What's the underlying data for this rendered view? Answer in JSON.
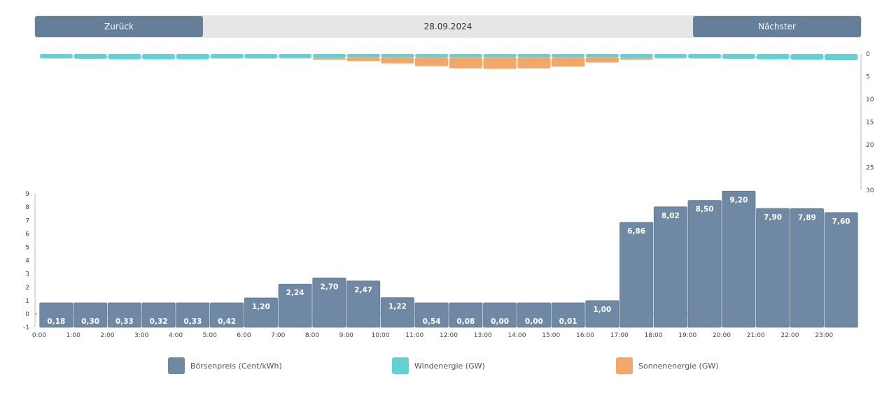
{
  "nav": {
    "prev_label": "Zurück",
    "date": "28.09.2024",
    "next_label": "Nächster"
  },
  "colors": {
    "price": "#6f88a3",
    "price_border": "#5f7793",
    "wind": "#62d0d4",
    "solar": "#f3a86b",
    "button": "#657f9b"
  },
  "legend": [
    {
      "label": "Börsenpreis (Cent/kWh)",
      "color": "#6f88a3"
    },
    {
      "label": "Windenergie (GW)",
      "color": "#62d0d4"
    },
    {
      "label": "Sonnenenergie (GW)",
      "color": "#f3a86b"
    }
  ],
  "chart_data": [
    {
      "type": "bar",
      "categories": [
        "0:00",
        "1:00",
        "2:00",
        "3:00",
        "4:00",
        "5:00",
        "6:00",
        "7:00",
        "8:00",
        "9:00",
        "10:00",
        "11:00",
        "12:00",
        "13:00",
        "14:00",
        "15:00",
        "16:00",
        "17:00",
        "18:00",
        "19:00",
        "20:00",
        "21:00",
        "22:00",
        "23:00"
      ],
      "series": [
        {
          "name": "Börsenpreis (Cent/kWh)",
          "values": [
            0.18,
            0.3,
            0.33,
            0.32,
            0.33,
            0.42,
            1.2,
            2.24,
            2.7,
            2.47,
            1.22,
            0.54,
            0.08,
            0.0,
            0.0,
            0.01,
            1.0,
            6.86,
            8.02,
            8.5,
            9.2,
            7.9,
            7.89,
            7.6
          ],
          "labels": [
            "0,18",
            "0,30",
            "0,33",
            "0,32",
            "0,33",
            "0,42",
            "1,20",
            "2,24",
            "2,70",
            "2,47",
            "1,22",
            "0,54",
            "0,08",
            "0,00",
            "0,00",
            "0,01",
            "1,00",
            "6,86",
            "8,02",
            "8,50",
            "9,20",
            "7,90",
            "7,89",
            "7,60"
          ]
        }
      ],
      "yticks": [
        -1,
        0,
        1,
        2,
        3,
        4,
        5,
        6,
        7,
        8,
        9
      ],
      "ylim": [
        -1,
        9
      ],
      "xlabel": "",
      "ylabel": ""
    },
    {
      "type": "bar",
      "stacked": true,
      "orientation": "inverted",
      "categories": [
        "0:00",
        "1:00",
        "2:00",
        "3:00",
        "4:00",
        "5:00",
        "6:00",
        "7:00",
        "8:00",
        "9:00",
        "10:00",
        "11:00",
        "12:00",
        "13:00",
        "14:00",
        "15:00",
        "16:00",
        "17:00",
        "18:00",
        "19:00",
        "20:00",
        "21:00",
        "22:00",
        "23:00"
      ],
      "series": [
        {
          "name": "Windenergie (GW)",
          "values": [
            1.0,
            1.1,
            1.2,
            1.2,
            1.2,
            1.0,
            1.0,
            0.9,
            0.9,
            0.8,
            0.8,
            0.8,
            0.8,
            0.8,
            0.8,
            0.8,
            0.8,
            0.9,
            0.9,
            1.0,
            1.1,
            1.2,
            1.3,
            1.4
          ]
        },
        {
          "name": "Sonnenenergie (GW)",
          "values": [
            0,
            0,
            0,
            0,
            0,
            0,
            0,
            0.1,
            0.4,
            0.8,
            1.3,
            1.9,
            2.4,
            2.5,
            2.4,
            2.0,
            1.1,
            0.4,
            0.1,
            0,
            0,
            0,
            0,
            0
          ]
        }
      ],
      "yticks": [
        0,
        5,
        10,
        15,
        20,
        25,
        30
      ],
      "ylim": [
        0,
        30
      ],
      "axis_position": "right"
    }
  ]
}
